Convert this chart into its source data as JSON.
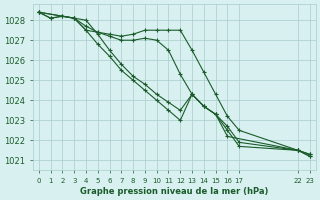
{
  "title": "Graphe pression niveau de la mer (hPa)",
  "bg_color": "#d8f0f0",
  "grid_color": "#aacccc",
  "line_color": "#1a5c2a",
  "ylim": [
    1020.5,
    1028.8
  ],
  "yticks": [
    1021,
    1022,
    1023,
    1024,
    1025,
    1026,
    1027,
    1028
  ],
  "xticks": [
    0,
    1,
    2,
    3,
    4,
    5,
    6,
    7,
    8,
    9,
    10,
    11,
    12,
    13,
    14,
    15,
    16,
    17,
    22,
    23
  ],
  "xtick_labels": [
    "0",
    "1",
    "2",
    "3",
    "4",
    "5",
    "6",
    "7",
    "8",
    "9",
    "10",
    "11",
    "12",
    "13",
    "14",
    "15",
    "16",
    "17",
    "22",
    "23"
  ],
  "series": [
    {
      "x": [
        0,
        1,
        2,
        3,
        4,
        5,
        6,
        7,
        8,
        9,
        10,
        11,
        12,
        13,
        14,
        15,
        16,
        17,
        22,
        23
      ],
      "y": [
        1028.4,
        1028.1,
        1028.2,
        1028.1,
        1027.5,
        1027.4,
        1027.3,
        1027.2,
        1027.3,
        1027.5,
        1027.5,
        1027.5,
        1027.5,
        1026.5,
        1025.4,
        1024.3,
        1023.2,
        1022.5,
        1021.5,
        1021.3
      ]
    },
    {
      "x": [
        0,
        1,
        2,
        3,
        4,
        5,
        6,
        7,
        8,
        9,
        10,
        11,
        12,
        13,
        14,
        15,
        16,
        17,
        22,
        23
      ],
      "y": [
        1028.4,
        1028.1,
        1028.2,
        1028.1,
        1027.7,
        1027.4,
        1027.2,
        1027.0,
        1027.0,
        1027.1,
        1027.0,
        1026.5,
        1025.3,
        1024.3,
        1023.7,
        1023.3,
        1022.7,
        1021.9,
        1021.5,
        1021.3
      ]
    },
    {
      "x": [
        0,
        3,
        4,
        5,
        6,
        7,
        8,
        9,
        10,
        11,
        12,
        13,
        14,
        15,
        16,
        17,
        22,
        23
      ],
      "y": [
        1028.4,
        1028.1,
        1027.5,
        1026.8,
        1026.2,
        1025.5,
        1025.0,
        1024.5,
        1024.0,
        1023.5,
        1023.0,
        1024.3,
        1023.7,
        1023.3,
        1022.5,
        1021.7,
        1021.5,
        1021.2
      ]
    },
    {
      "x": [
        0,
        3,
        4,
        5,
        6,
        7,
        8,
        9,
        10,
        11,
        12,
        13,
        14,
        15,
        16,
        22,
        23
      ],
      "y": [
        1028.4,
        1028.1,
        1028.0,
        1027.3,
        1026.5,
        1025.8,
        1025.2,
        1024.8,
        1024.3,
        1023.9,
        1023.5,
        1024.3,
        1023.7,
        1023.3,
        1022.2,
        1021.5,
        1021.2
      ]
    }
  ]
}
